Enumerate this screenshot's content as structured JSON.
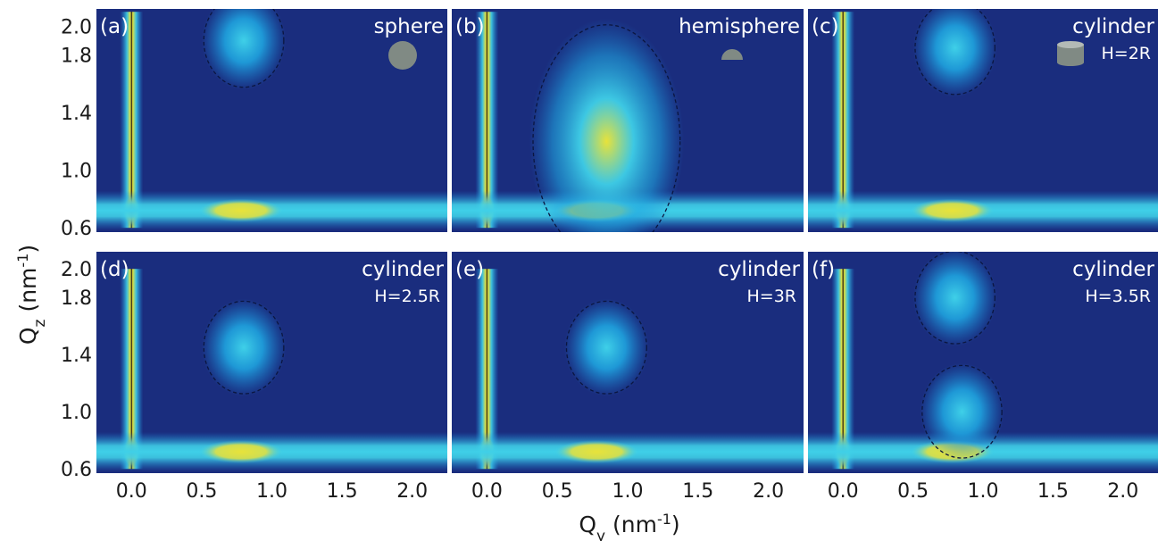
{
  "chart_data": {
    "type": "heatmap",
    "xlabel": {
      "base": "Q",
      "sub": "y",
      "unit": " (nm",
      "sup": "-1",
      "close": ")"
    },
    "ylabel": {
      "base": "Q",
      "sub": "z",
      "unit": " (nm",
      "sup": "-1",
      "close": ")"
    },
    "xlim": [
      -0.25,
      2.25
    ],
    "ylim": [
      0.57,
      2.12
    ],
    "x_ticks": [
      "0.0",
      "0.5",
      "1.0",
      "1.5",
      "2.0"
    ],
    "y_ticks": [
      "0.6",
      "1.0",
      "1.4",
      "1.8",
      "2.0"
    ],
    "colors": {
      "background": "#1a2d7e",
      "mid": "#1b82d6",
      "cyan": "#3fd0e8",
      "peak": "#e8e23a",
      "hot": "#d9531e",
      "contour": "#0b1640"
    },
    "panels": [
      {
        "id": "a",
        "label": "(a)",
        "title": "sphere",
        "subtitle": "",
        "icon": "sphere-icon",
        "features": [
          {
            "shape": "vertical-streak",
            "qy": 0.0,
            "qz_from": 0.6,
            "qz_to": 2.1,
            "level": "hot"
          },
          {
            "shape": "band",
            "qz": 0.72,
            "level": "peak"
          },
          {
            "shape": "blob",
            "qy": 0.8,
            "qz": 1.9,
            "level": "cyan"
          }
        ]
      },
      {
        "id": "b",
        "label": "(b)",
        "title": "hemisphere",
        "subtitle": "",
        "icon": "hemisphere-icon",
        "features": [
          {
            "shape": "vertical-streak",
            "qy": 0.0,
            "qz_from": 0.6,
            "qz_to": 2.1,
            "level": "hot"
          },
          {
            "shape": "band",
            "qz": 0.72,
            "level": "peak"
          },
          {
            "shape": "blob",
            "qy": 0.85,
            "qz": 1.2,
            "level": "peak"
          }
        ]
      },
      {
        "id": "c",
        "label": "(c)",
        "title": "cylinder",
        "subtitle": "H=2R",
        "icon": "cylinder-icon",
        "features": [
          {
            "shape": "vertical-streak",
            "qy": 0.0,
            "qz_from": 0.6,
            "qz_to": 2.1,
            "level": "hot"
          },
          {
            "shape": "band",
            "qz": 0.72,
            "level": "peak"
          },
          {
            "shape": "blob",
            "qy": 0.8,
            "qz": 1.85,
            "level": "cyan"
          }
        ]
      },
      {
        "id": "d",
        "label": "(d)",
        "title": "cylinder",
        "subtitle": "H=2.5R",
        "icon": "",
        "features": [
          {
            "shape": "vertical-streak",
            "qy": 0.0,
            "qz_from": 0.6,
            "qz_to": 2.0,
            "level": "hot"
          },
          {
            "shape": "band",
            "qz": 0.72,
            "level": "peak"
          },
          {
            "shape": "blob",
            "qy": 0.8,
            "qz": 1.45,
            "level": "cyan"
          }
        ]
      },
      {
        "id": "e",
        "label": "(e)",
        "title": "cylinder",
        "subtitle": "H=3R",
        "icon": "",
        "features": [
          {
            "shape": "vertical-streak",
            "qy": 0.0,
            "qz_from": 0.6,
            "qz_to": 2.0,
            "level": "hot"
          },
          {
            "shape": "band",
            "qz": 0.72,
            "level": "peak"
          },
          {
            "shape": "blob",
            "qy": 0.85,
            "qz": 1.45,
            "level": "cyan"
          }
        ]
      },
      {
        "id": "f",
        "label": "(f)",
        "title": "cylinder",
        "subtitle": "H=3.5R",
        "icon": "",
        "features": [
          {
            "shape": "vertical-streak",
            "qy": 0.0,
            "qz_from": 0.6,
            "qz_to": 2.0,
            "level": "hot"
          },
          {
            "shape": "band",
            "qz": 0.72,
            "level": "peak"
          },
          {
            "shape": "blob",
            "qy": 0.8,
            "qz": 1.8,
            "level": "cyan"
          },
          {
            "shape": "blob",
            "qy": 0.85,
            "qz": 1.0,
            "level": "cyan"
          }
        ]
      }
    ]
  }
}
